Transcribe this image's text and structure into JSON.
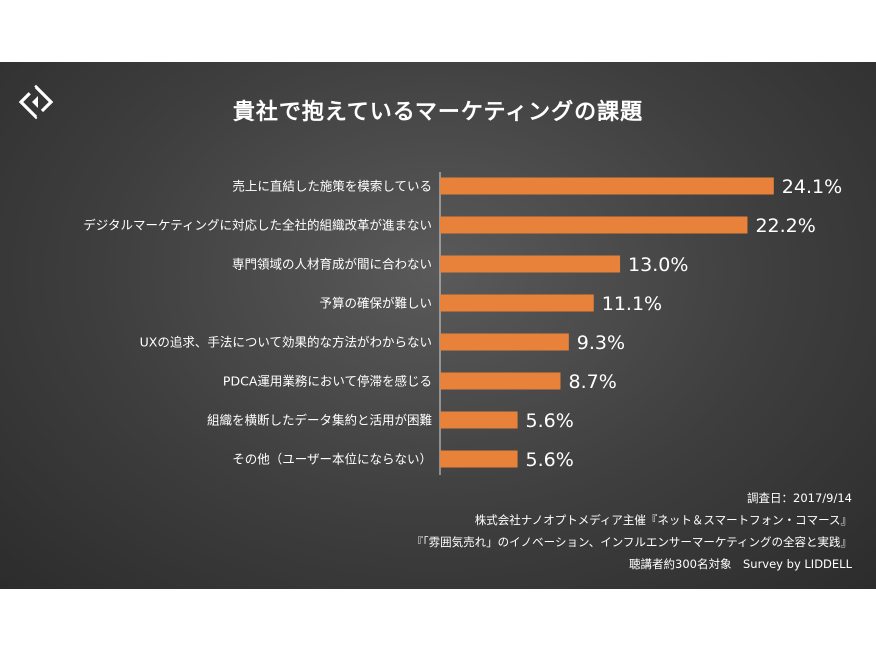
{
  "title": "貴社で抱えているマーケティングの課題",
  "colors": {
    "bar": "#e8823a",
    "text": "#ffffff",
    "axis": "#d9d9d9"
  },
  "chart_data": {
    "type": "bar",
    "orientation": "horizontal",
    "title": "貴社で抱えているマーケティングの課題",
    "categories": [
      "売上に直結した施策を模索している",
      "デジタルマーケティングに対応した全社的組織改革が進まない",
      "専門領域の人材育成が間に合わない",
      "予算の確保が難しい",
      "UXの追求、手法について効果的な方法がわからない",
      "PDCA運用業務において停滞を感じる",
      "組織を横断したデータ集約と活用が困難",
      "その他（ユーザー本位にならない）"
    ],
    "values": [
      24.1,
      22.2,
      13.0,
      11.1,
      9.3,
      8.7,
      5.6,
      5.6
    ],
    "value_labels": [
      "24.1%",
      "22.2%",
      "13.0%",
      "11.1%",
      "9.3%",
      "8.7%",
      "5.6%",
      "5.6%"
    ],
    "unit": "%",
    "grid": false,
    "legend": "none"
  },
  "footer": {
    "line1": "調査日：2017/9/14",
    "line2": "株式会社ナノオプトメディア主催『ネット＆スマートフォン・コマース』",
    "line3": "『「雰囲気売れ」のイノベーション、インフルエンサーマーケティングの全容と実践』",
    "line4": "聴講者約300名対象　Survey by LIDDELL"
  }
}
